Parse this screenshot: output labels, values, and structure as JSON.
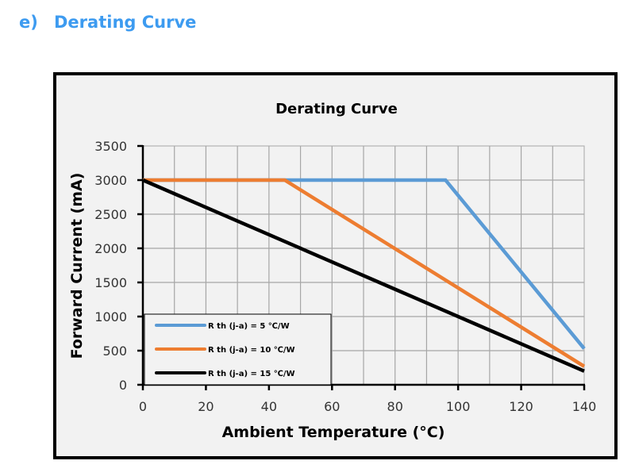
{
  "section_heading": {
    "number": "e)",
    "title": "Derating Curve"
  },
  "chart_data": {
    "type": "line",
    "title": "Derating Curve",
    "xlabel": "Ambient Temperature (°C)",
    "ylabel": "Forward Current (mA)",
    "xlim": [
      0,
      140
    ],
    "ylim": [
      0,
      3500
    ],
    "x_ticks": [
      0,
      20,
      40,
      60,
      80,
      100,
      120,
      140
    ],
    "x_tick_labels": [
      "0",
      "20",
      "40",
      "60",
      "80",
      "100",
      "120",
      "140"
    ],
    "y_ticks": [
      0,
      500,
      1000,
      1500,
      2000,
      2500,
      3000,
      3500
    ],
    "y_tick_labels": [
      "0",
      "500",
      "1000",
      "1500",
      "2000",
      "2500",
      "3000",
      "3500"
    ],
    "grid": true,
    "grid_x_step": 10,
    "grid_y_step": 500,
    "legend_position": "bottom-left",
    "series": [
      {
        "name": "R th (j-a) = 5 ℃/W",
        "color": "#5b9bd5",
        "points": [
          [
            0,
            3000
          ],
          [
            96,
            3000
          ],
          [
            140,
            530
          ]
        ]
      },
      {
        "name": "R th (j-a) = 10 ℃/W",
        "color": "#ed7d31",
        "points": [
          [
            0,
            3000
          ],
          [
            45,
            3000
          ],
          [
            140,
            270
          ]
        ]
      },
      {
        "name": "R th (j-a) = 15 ℃/W",
        "color": "#000000",
        "points": [
          [
            0,
            3000
          ],
          [
            140,
            200
          ]
        ]
      }
    ]
  }
}
